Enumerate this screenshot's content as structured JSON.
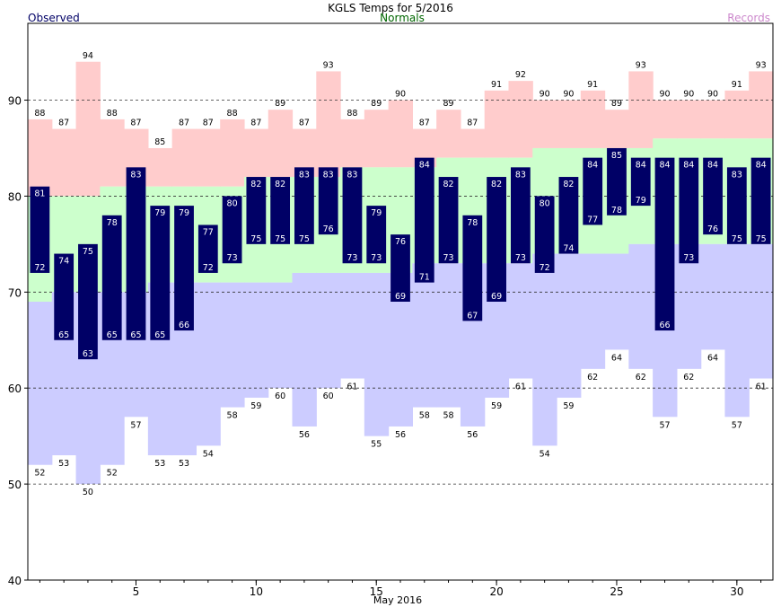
{
  "chart_data": {
    "type": "bar",
    "title": "KGLS Temps for  5/2016",
    "xlabel": "May 2016",
    "ylabel": "",
    "legend": {
      "observed": "Observed",
      "normals": "Normals",
      "records": "Records",
      "placement": "top"
    },
    "colors": {
      "observed": "#000066",
      "observed_text": "#ffffff",
      "normal_band": "#ccffcc",
      "record_high": "#ffcccc",
      "record_low": "#ccccff",
      "normals_legend": "#006600",
      "records_legend": "#cc88cc",
      "grid": "#333333"
    },
    "ylim": [
      40,
      98
    ],
    "y_ticks": [
      40,
      50,
      60,
      70,
      80,
      90
    ],
    "x_ticks": [
      5,
      10,
      15,
      20,
      25,
      30
    ],
    "grid": "dashed at 50, 60, 70, 80, 90",
    "days": [
      1,
      2,
      3,
      4,
      5,
      6,
      7,
      8,
      9,
      10,
      11,
      12,
      13,
      14,
      15,
      16,
      17,
      18,
      19,
      20,
      21,
      22,
      23,
      24,
      25,
      26,
      27,
      28,
      29,
      30,
      31
    ],
    "series": [
      {
        "name": "Observed",
        "key": "obs_high",
        "values": [
          81,
          74,
          75,
          78,
          83,
          79,
          79,
          77,
          80,
          82,
          82,
          83,
          83,
          83,
          79,
          76,
          84,
          82,
          78,
          82,
          83,
          80,
          82,
          84,
          85,
          84,
          84,
          84,
          84,
          83,
          84
        ]
      },
      {
        "name": "Observed",
        "key": "obs_low",
        "values": [
          72,
          65,
          63,
          65,
          65,
          65,
          66,
          72,
          73,
          75,
          75,
          75,
          76,
          73,
          73,
          69,
          71,
          73,
          67,
          69,
          73,
          72,
          74,
          77,
          78,
          79,
          66,
          73,
          76,
          75,
          75
        ]
      },
      {
        "name": "Normals",
        "key": "normal_high",
        "values": [
          80,
          80,
          80,
          81,
          81,
          81,
          81,
          81,
          81,
          82,
          82,
          82,
          82,
          83,
          83,
          83,
          83,
          84,
          84,
          84,
          84,
          85,
          85,
          85,
          85,
          85,
          86,
          86,
          86,
          86,
          86
        ]
      },
      {
        "name": "Normals",
        "key": "normal_low",
        "values": [
          69,
          70,
          70,
          70,
          70,
          71,
          71,
          71,
          71,
          71,
          71,
          72,
          72,
          72,
          72,
          72,
          73,
          73,
          73,
          73,
          73,
          74,
          74,
          74,
          74,
          75,
          75,
          75,
          75,
          75,
          75
        ]
      },
      {
        "name": "Records",
        "key": "record_high",
        "values": [
          88,
          87,
          94,
          88,
          87,
          85,
          87,
          87,
          88,
          87,
          89,
          87,
          93,
          88,
          89,
          90,
          87,
          89,
          87,
          91,
          92,
          90,
          90,
          91,
          89,
          93,
          90,
          90,
          90,
          91,
          93
        ]
      },
      {
        "name": "Records",
        "key": "record_low",
        "values": [
          52,
          53,
          50,
          52,
          57,
          53,
          53,
          54,
          58,
          59,
          60,
          56,
          60,
          61,
          55,
          56,
          58,
          58,
          56,
          59,
          61,
          54,
          59,
          62,
          64,
          62,
          57,
          62,
          64,
          57,
          61
        ]
      }
    ]
  }
}
